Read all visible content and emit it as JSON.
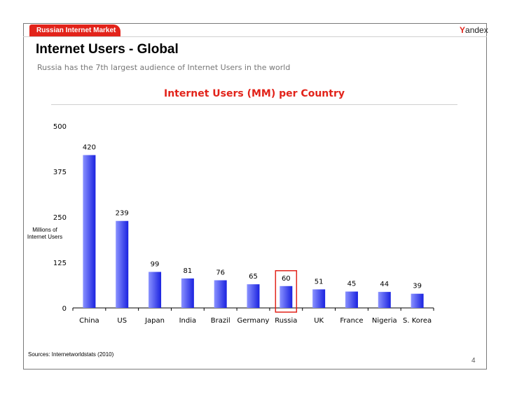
{
  "header": {
    "section_tab": "Russian Internet Market",
    "logo_text": "Yandex",
    "logo_first": "Y",
    "logo_rest": "andex"
  },
  "page": {
    "title": "Internet Users - Global",
    "subtitle": "Russia has the 7th largest audience of Internet Users in the world",
    "source": "Sources: Internetworldstats (2010)",
    "page_number": "4"
  },
  "colors": {
    "accent": "#e2231a",
    "bar_light": "#8a92ff",
    "bar_dark": "#1a22e0",
    "highlight_box": "#e2231a"
  },
  "chart_data": {
    "type": "bar",
    "title": "Internet Users (MM) per Country",
    "ylabel": "Millions of Internet Users",
    "xlabel": "",
    "ylim": [
      0,
      500
    ],
    "yticks": [
      0,
      125,
      250,
      375,
      500
    ],
    "grid": false,
    "categories": [
      "China",
      "US",
      "Japan",
      "India",
      "Brazil",
      "Germany",
      "Russia",
      "UK",
      "France",
      "Nigeria",
      "S. Korea"
    ],
    "values": [
      420,
      239,
      99,
      81,
      76,
      65,
      60,
      51,
      45,
      44,
      39
    ],
    "highlighted_category": "Russia"
  }
}
